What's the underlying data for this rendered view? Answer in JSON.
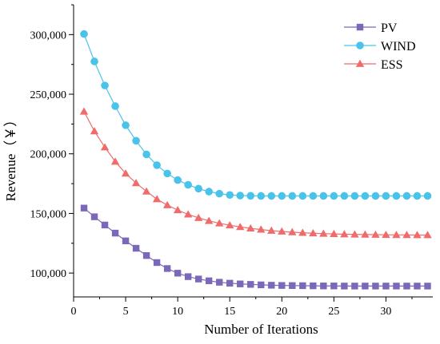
{
  "chart_data": {
    "type": "line",
    "xlabel": "Number of Iterations",
    "ylabel": "Revenue（￥）",
    "xlim": [
      0,
      34.5
    ],
    "ylim": [
      80000,
      325000
    ],
    "xticks": [
      0,
      5,
      10,
      15,
      20,
      25,
      30
    ],
    "yticks": [
      100000,
      150000,
      200000,
      250000,
      300000
    ],
    "ytick_labels": [
      "100,000",
      "150,000",
      "200,000",
      "250,000",
      "300,000"
    ],
    "grid": false,
    "legend_position": "top-right",
    "x": [
      1,
      2,
      3,
      4,
      5,
      6,
      7,
      8,
      9,
      10,
      11,
      12,
      13,
      14,
      15,
      16,
      17,
      18,
      19,
      20,
      21,
      22,
      23,
      24,
      25,
      26,
      27,
      28,
      29,
      30,
      31,
      32,
      33,
      34
    ],
    "series": [
      {
        "name": "PV",
        "color": "#7b68b8",
        "marker": "square",
        "values": [
          154500,
          147200,
          140300,
          133500,
          127000,
          120800,
          114700,
          108800,
          103800,
          99900,
          97000,
          95000,
          93500,
          92300,
          91500,
          90900,
          90500,
          90100,
          89800,
          89600,
          89500,
          89400,
          89300,
          89200,
          89200,
          89100,
          89100,
          89100,
          89100,
          89100,
          89100,
          89100,
          89100,
          89100
        ]
      },
      {
        "name": "WIND",
        "color": "#49c3ea",
        "marker": "circle",
        "values": [
          300500,
          277500,
          257300,
          240000,
          224000,
          211000,
          199500,
          190500,
          183500,
          178000,
          174000,
          170800,
          168300,
          166600,
          165500,
          165000,
          164800,
          164700,
          164700,
          164700,
          164700,
          164700,
          164700,
          164700,
          164700,
          164700,
          164700,
          164700,
          164700,
          164700,
          164700,
          164700,
          164700,
          164700
        ]
      },
      {
        "name": "ESS",
        "color": "#f06b6b",
        "marker": "triangle",
        "values": [
          235500,
          219000,
          205500,
          193500,
          183500,
          175500,
          168500,
          162000,
          157000,
          152800,
          149200,
          146300,
          143800,
          141800,
          140100,
          138700,
          137500,
          136500,
          135600,
          134900,
          134300,
          133800,
          133400,
          133100,
          132800,
          132600,
          132400,
          132300,
          132200,
          132100,
          132000,
          132000,
          131900,
          131900
        ]
      }
    ]
  }
}
